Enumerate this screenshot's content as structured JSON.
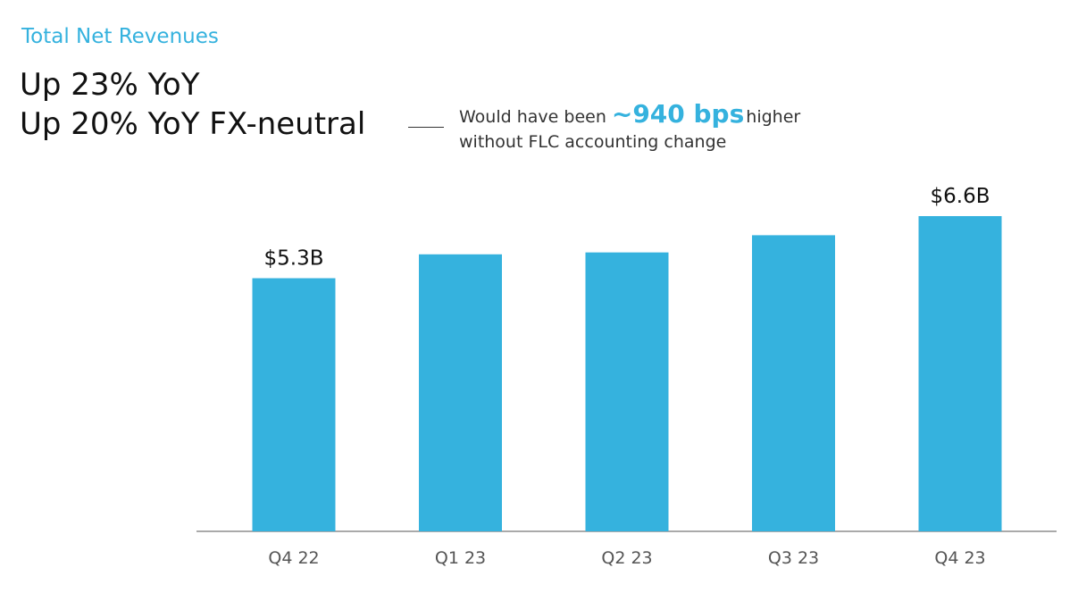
{
  "header": {
    "section_title": "Total Net Revenues",
    "headline_1": "Up 23% YoY",
    "headline_2": "Up 20% YoY FX-neutral",
    "callout_prefix": "Would have been",
    "callout_highlight": "~940 bps",
    "callout_suffix": "higher",
    "callout_line2": "without FLC accounting change"
  },
  "colors": {
    "accent": "#35B2DE",
    "text": "#111111",
    "axis": "#666666"
  },
  "chart_data": {
    "type": "bar",
    "categories": [
      "Q4 22",
      "Q1 23",
      "Q2 23",
      "Q3 23",
      "Q4 23"
    ],
    "values": [
      5.3,
      5.8,
      5.84,
      6.2,
      6.6
    ],
    "value_unit": "$B",
    "data_labels": [
      "$5.3B",
      "",
      "",
      "",
      "$6.6B"
    ],
    "title": "Total Net Revenues",
    "xlabel": "",
    "ylabel": "",
    "ylim": [
      0,
      7.0
    ],
    "grid": false,
    "legend": "none"
  }
}
